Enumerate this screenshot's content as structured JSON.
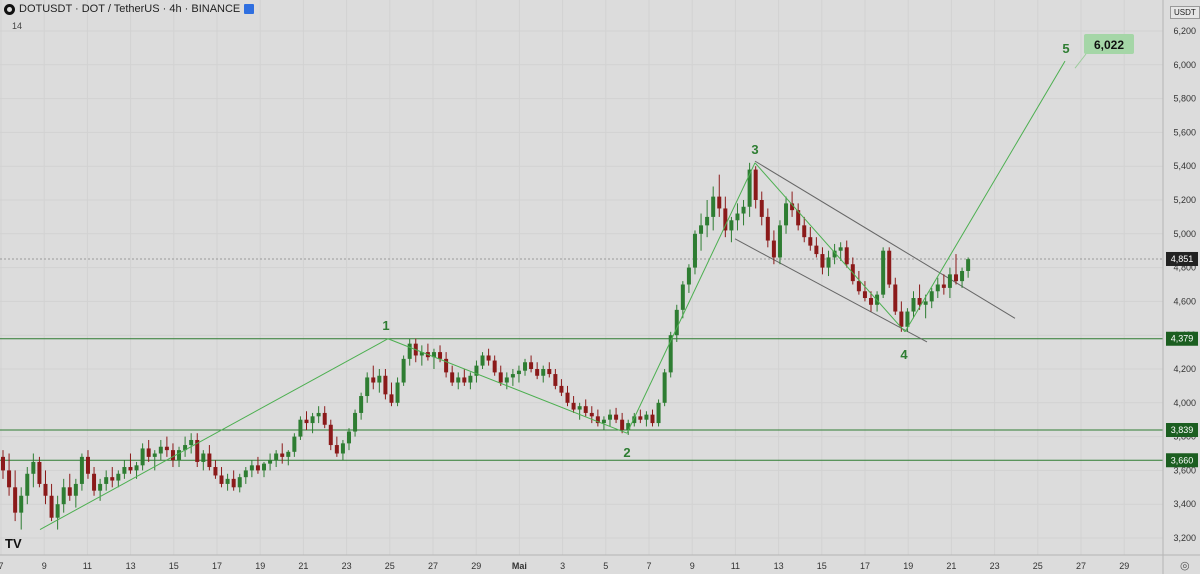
{
  "header": {
    "symbol": "DOTUSDT · DOT / TetherUS · 4h · BINANCE",
    "indicator": "14",
    "currency": "USDT"
  },
  "logo": "TV",
  "colors": {
    "background": "#dcdcdc",
    "up": "#2e7d32",
    "down": "#8b1a1a",
    "wave": "#4caf50",
    "level": "#2e7d32",
    "channel": "#666666",
    "target_label": "#a5d6a7"
  },
  "chart_data": {
    "type": "candlestick",
    "x_ticks": [
      "7",
      "9",
      "11",
      "13",
      "15",
      "17",
      "19",
      "21",
      "23",
      "25",
      "27",
      "29",
      "Mai",
      "3",
      "5",
      "7",
      "9",
      "11",
      "13",
      "15",
      "17",
      "19",
      "21",
      "23",
      "25",
      "27",
      "29"
    ],
    "y_ticks": [
      "6,200",
      "6,000",
      "5,800",
      "5,600",
      "5,400",
      "5,200",
      "5,000",
      "4,800",
      "4,600",
      "4,400",
      "4,200",
      "4,000",
      "3,800",
      "3,600",
      "3,400",
      "3,200"
    ],
    "ylim": [
      3100,
      6300
    ],
    "last_price": {
      "value": 4.851,
      "label": "4,851"
    },
    "levels": [
      {
        "value": 4.379,
        "label": "4,379"
      },
      {
        "value": 3.839,
        "label": "3,839"
      },
      {
        "value": 3.66,
        "label": "3,660"
      }
    ],
    "candles": [
      [
        3.68,
        3.72,
        3.55,
        3.6
      ],
      [
        3.6,
        3.7,
        3.45,
        3.5
      ],
      [
        3.5,
        3.6,
        3.3,
        3.35
      ],
      [
        3.35,
        3.5,
        3.25,
        3.45
      ],
      [
        3.45,
        3.62,
        3.4,
        3.58
      ],
      [
        3.58,
        3.7,
        3.5,
        3.65
      ],
      [
        3.65,
        3.68,
        3.5,
        3.52
      ],
      [
        3.52,
        3.6,
        3.4,
        3.45
      ],
      [
        3.45,
        3.52,
        3.3,
        3.32
      ],
      [
        3.32,
        3.45,
        3.25,
        3.4
      ],
      [
        3.4,
        3.55,
        3.35,
        3.5
      ],
      [
        3.5,
        3.58,
        3.42,
        3.45
      ],
      [
        3.45,
        3.55,
        3.38,
        3.52
      ],
      [
        3.52,
        3.7,
        3.48,
        3.68
      ],
      [
        3.68,
        3.72,
        3.55,
        3.58
      ],
      [
        3.58,
        3.62,
        3.45,
        3.48
      ],
      [
        3.48,
        3.55,
        3.42,
        3.52
      ],
      [
        3.52,
        3.6,
        3.48,
        3.56
      ],
      [
        3.56,
        3.62,
        3.5,
        3.54
      ],
      [
        3.54,
        3.6,
        3.5,
        3.58
      ],
      [
        3.58,
        3.66,
        3.55,
        3.62
      ],
      [
        3.62,
        3.7,
        3.58,
        3.6
      ],
      [
        3.6,
        3.65,
        3.55,
        3.63
      ],
      [
        3.63,
        3.76,
        3.6,
        3.73
      ],
      [
        3.73,
        3.78,
        3.65,
        3.68
      ],
      [
        3.68,
        3.72,
        3.6,
        3.7
      ],
      [
        3.7,
        3.78,
        3.66,
        3.74
      ],
      [
        3.74,
        3.8,
        3.68,
        3.72
      ],
      [
        3.72,
        3.76,
        3.62,
        3.66
      ],
      [
        3.66,
        3.74,
        3.62,
        3.72
      ],
      [
        3.72,
        3.8,
        3.68,
        3.75
      ],
      [
        3.75,
        3.82,
        3.7,
        3.78
      ],
      [
        3.78,
        3.82,
        3.62,
        3.65
      ],
      [
        3.65,
        3.72,
        3.6,
        3.7
      ],
      [
        3.7,
        3.75,
        3.6,
        3.62
      ],
      [
        3.62,
        3.66,
        3.55,
        3.57
      ],
      [
        3.57,
        3.62,
        3.5,
        3.52
      ],
      [
        3.52,
        3.58,
        3.48,
        3.55
      ],
      [
        3.55,
        3.6,
        3.48,
        3.5
      ],
      [
        3.5,
        3.58,
        3.47,
        3.56
      ],
      [
        3.56,
        3.62,
        3.52,
        3.6
      ],
      [
        3.6,
        3.66,
        3.56,
        3.63
      ],
      [
        3.63,
        3.68,
        3.58,
        3.6
      ],
      [
        3.6,
        3.65,
        3.56,
        3.64
      ],
      [
        3.64,
        3.7,
        3.6,
        3.66
      ],
      [
        3.66,
        3.72,
        3.62,
        3.7
      ],
      [
        3.7,
        3.76,
        3.64,
        3.68
      ],
      [
        3.68,
        3.72,
        3.63,
        3.71
      ],
      [
        3.71,
        3.82,
        3.68,
        3.8
      ],
      [
        3.8,
        3.92,
        3.78,
        3.9
      ],
      [
        3.9,
        3.95,
        3.84,
        3.88
      ],
      [
        3.88,
        3.94,
        3.82,
        3.92
      ],
      [
        3.92,
        3.98,
        3.88,
        3.94
      ],
      [
        3.94,
        3.98,
        3.85,
        3.87
      ],
      [
        3.87,
        3.9,
        3.72,
        3.75
      ],
      [
        3.75,
        3.8,
        3.68,
        3.7
      ],
      [
        3.7,
        3.78,
        3.66,
        3.76
      ],
      [
        3.76,
        3.85,
        3.72,
        3.83
      ],
      [
        3.83,
        3.96,
        3.8,
        3.94
      ],
      [
        3.94,
        4.06,
        3.9,
        4.04
      ],
      [
        4.04,
        4.18,
        4.0,
        4.15
      ],
      [
        4.15,
        4.22,
        4.08,
        4.12
      ],
      [
        4.12,
        4.2,
        4.06,
        4.16
      ],
      [
        4.16,
        4.2,
        4.02,
        4.05
      ],
      [
        4.05,
        4.12,
        3.98,
        4.0
      ],
      [
        4.0,
        4.15,
        3.98,
        4.12
      ],
      [
        4.12,
        4.28,
        4.1,
        4.26
      ],
      [
        4.26,
        4.38,
        4.22,
        4.35
      ],
      [
        4.35,
        4.38,
        4.24,
        4.28
      ],
      [
        4.28,
        4.34,
        4.22,
        4.3
      ],
      [
        4.3,
        4.35,
        4.25,
        4.27
      ],
      [
        4.27,
        4.32,
        4.2,
        4.3
      ],
      [
        4.3,
        4.34,
        4.24,
        4.26
      ],
      [
        4.26,
        4.3,
        4.15,
        4.18
      ],
      [
        4.18,
        4.22,
        4.1,
        4.12
      ],
      [
        4.12,
        4.18,
        4.08,
        4.15
      ],
      [
        4.15,
        4.2,
        4.1,
        4.12
      ],
      [
        4.12,
        4.18,
        4.08,
        4.16
      ],
      [
        4.16,
        4.25,
        4.12,
        4.22
      ],
      [
        4.22,
        4.3,
        4.2,
        4.28
      ],
      [
        4.28,
        4.32,
        4.22,
        4.25
      ],
      [
        4.25,
        4.28,
        4.16,
        4.18
      ],
      [
        4.18,
        4.22,
        4.1,
        4.12
      ],
      [
        4.12,
        4.18,
        4.08,
        4.15
      ],
      [
        4.15,
        4.2,
        4.1,
        4.17
      ],
      [
        4.17,
        4.22,
        4.12,
        4.19
      ],
      [
        4.19,
        4.26,
        4.16,
        4.24
      ],
      [
        4.24,
        4.28,
        4.18,
        4.2
      ],
      [
        4.2,
        4.24,
        4.14,
        4.16
      ],
      [
        4.16,
        4.22,
        4.12,
        4.2
      ],
      [
        4.2,
        4.24,
        4.15,
        4.17
      ],
      [
        4.17,
        4.2,
        4.08,
        4.1
      ],
      [
        4.1,
        4.14,
        4.04,
        4.06
      ],
      [
        4.06,
        4.1,
        3.98,
        4.0
      ],
      [
        4.0,
        4.04,
        3.94,
        3.96
      ],
      [
        3.96,
        4.0,
        3.9,
        3.98
      ],
      [
        3.98,
        4.02,
        3.92,
        3.94
      ],
      [
        3.94,
        3.98,
        3.88,
        3.92
      ],
      [
        3.92,
        3.96,
        3.86,
        3.88
      ],
      [
        3.88,
        3.92,
        3.84,
        3.9
      ],
      [
        3.9,
        3.96,
        3.86,
        3.93
      ],
      [
        3.93,
        3.97,
        3.88,
        3.9
      ],
      [
        3.9,
        3.94,
        3.82,
        3.84
      ],
      [
        3.84,
        3.9,
        3.81,
        3.88
      ],
      [
        3.88,
        3.94,
        3.86,
        3.92
      ],
      [
        3.92,
        3.96,
        3.88,
        3.9
      ],
      [
        3.9,
        3.95,
        3.86,
        3.93
      ],
      [
        3.93,
        3.96,
        3.86,
        3.88
      ],
      [
        3.88,
        4.02,
        3.86,
        4.0
      ],
      [
        4.0,
        4.2,
        3.98,
        4.18
      ],
      [
        4.18,
        4.42,
        4.15,
        4.4
      ],
      [
        4.4,
        4.58,
        4.36,
        4.55
      ],
      [
        4.55,
        4.72,
        4.5,
        4.7
      ],
      [
        4.7,
        4.82,
        4.65,
        4.8
      ],
      [
        4.8,
        5.02,
        4.76,
        5.0
      ],
      [
        5.0,
        5.12,
        4.9,
        5.05
      ],
      [
        5.05,
        5.2,
        4.98,
        5.1
      ],
      [
        5.1,
        5.28,
        5.02,
        5.22
      ],
      [
        5.22,
        5.35,
        5.1,
        5.15
      ],
      [
        5.15,
        5.22,
        4.98,
        5.02
      ],
      [
        5.02,
        5.1,
        4.95,
        5.08
      ],
      [
        5.08,
        5.18,
        5.02,
        5.12
      ],
      [
        5.12,
        5.2,
        5.05,
        5.16
      ],
      [
        5.16,
        5.42,
        5.1,
        5.38
      ],
      [
        5.38,
        5.4,
        5.15,
        5.2
      ],
      [
        5.2,
        5.25,
        5.05,
        5.1
      ],
      [
        5.1,
        5.15,
        4.92,
        4.96
      ],
      [
        4.96,
        5.02,
        4.82,
        4.86
      ],
      [
        4.86,
        5.08,
        4.82,
        5.05
      ],
      [
        5.05,
        5.22,
        5.0,
        5.18
      ],
      [
        5.18,
        5.25,
        5.1,
        5.14
      ],
      [
        5.14,
        5.18,
        5.02,
        5.05
      ],
      [
        5.05,
        5.1,
        4.95,
        4.98
      ],
      [
        4.98,
        5.04,
        4.9,
        4.93
      ],
      [
        4.93,
        4.98,
        4.86,
        4.88
      ],
      [
        4.88,
        4.92,
        4.76,
        4.8
      ],
      [
        4.8,
        4.9,
        4.75,
        4.86
      ],
      [
        4.86,
        4.94,
        4.82,
        4.9
      ],
      [
        4.9,
        4.95,
        4.84,
        4.92
      ],
      [
        4.92,
        4.96,
        4.8,
        4.82
      ],
      [
        4.82,
        4.86,
        4.7,
        4.72
      ],
      [
        4.72,
        4.78,
        4.64,
        4.66
      ],
      [
        4.66,
        4.72,
        4.6,
        4.62
      ],
      [
        4.62,
        4.66,
        4.54,
        4.58
      ],
      [
        4.58,
        4.66,
        4.54,
        4.64
      ],
      [
        4.64,
        4.92,
        4.62,
        4.9
      ],
      [
        4.9,
        4.92,
        4.68,
        4.7
      ],
      [
        4.7,
        4.74,
        4.52,
        4.54
      ],
      [
        4.54,
        4.6,
        4.42,
        4.45
      ],
      [
        4.45,
        4.56,
        4.42,
        4.54
      ],
      [
        4.54,
        4.66,
        4.5,
        4.62
      ],
      [
        4.62,
        4.7,
        4.55,
        4.58
      ],
      [
        4.58,
        4.64,
        4.5,
        4.6
      ],
      [
        4.6,
        4.68,
        4.56,
        4.66
      ],
      [
        4.66,
        4.74,
        4.62,
        4.7
      ],
      [
        4.7,
        4.76,
        4.64,
        4.68
      ],
      [
        4.68,
        4.8,
        4.62,
        4.76
      ],
      [
        4.76,
        4.88,
        4.7,
        4.72
      ],
      [
        4.72,
        4.8,
        4.68,
        4.78
      ],
      [
        4.78,
        4.86,
        4.74,
        4.85
      ]
    ],
    "waves": [
      {
        "label": "1",
        "value": 4.379
      },
      {
        "label": "2",
        "value": 3.82
      },
      {
        "label": "3",
        "value": 5.42
      },
      {
        "label": "4",
        "value": 4.42
      },
      {
        "label": "5",
        "value": 6.022,
        "target_label": "6,022"
      }
    ]
  }
}
